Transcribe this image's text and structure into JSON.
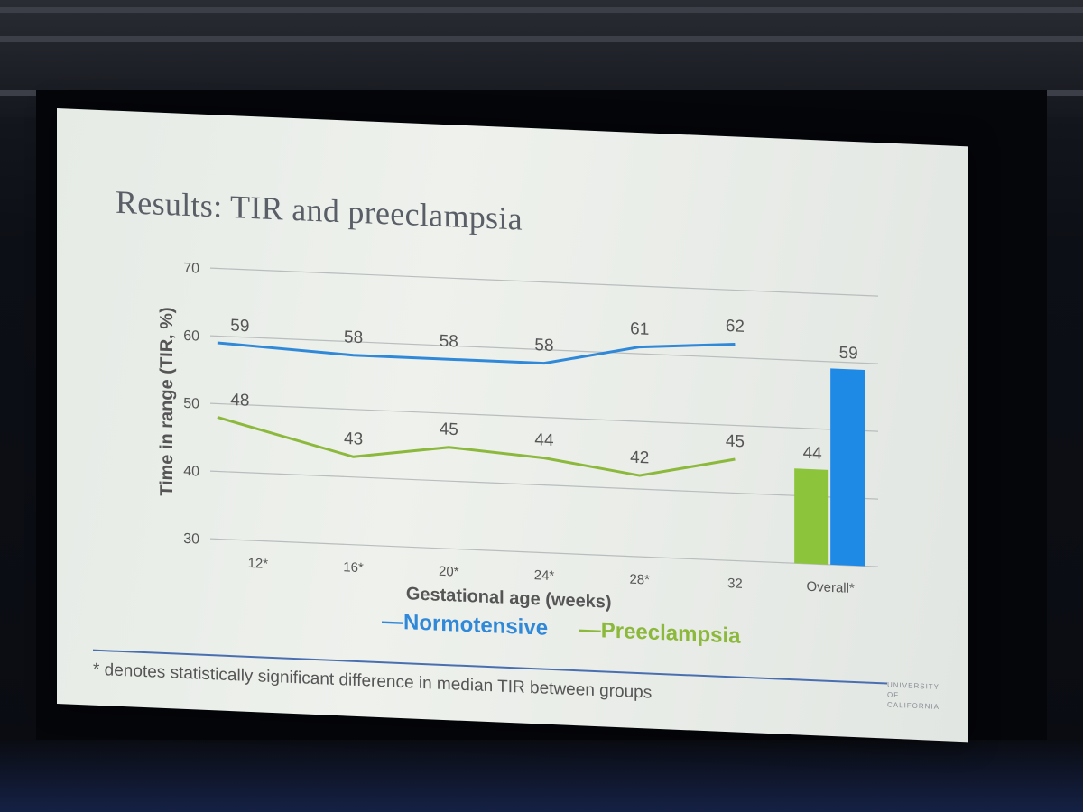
{
  "slide": {
    "title": "Results: TIR and preeclampsia",
    "footnote": "* denotes statistically significant difference in median TIR between groups",
    "logo_lines": [
      "UNIVERSITY",
      "OF",
      "CALIFORNIA"
    ]
  },
  "chart_data": {
    "type": "line",
    "title": "",
    "xlabel": "Gestational age (weeks)",
    "ylabel": "Time in range (TIR, %)",
    "ylim": [
      30,
      70
    ],
    "yticks": [
      30,
      40,
      50,
      60,
      70
    ],
    "grid": true,
    "categories": [
      "12*",
      "16*",
      "20*",
      "24*",
      "28*",
      "32"
    ],
    "series": [
      {
        "name": "Normotensive",
        "color": "#2f88d8",
        "values": [
          59,
          58,
          58,
          58,
          61,
          62
        ]
      },
      {
        "name": "Preeclampsia",
        "color": "#8cb83c",
        "values": [
          48,
          43,
          45,
          44,
          42,
          45
        ]
      }
    ],
    "overall": {
      "type": "bar",
      "category": "Overall*",
      "values": [
        {
          "series": "Preeclampsia",
          "value": 44,
          "color": "#8cc43c"
        },
        {
          "series": "Normotensive",
          "value": 59,
          "color": "#1f8ae6"
        }
      ]
    },
    "legend": {
      "placement": "bottom",
      "entries": [
        {
          "label": "—Normotensive",
          "color": "#2f88d8"
        },
        {
          "label": "—Preeclampsia",
          "color": "#8cb83c"
        }
      ]
    }
  }
}
